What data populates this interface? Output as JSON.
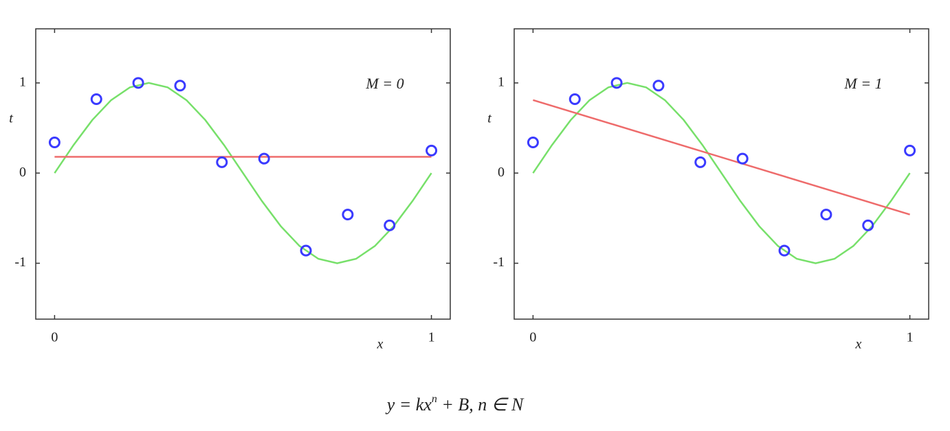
{
  "chart_data": [
    {
      "type": "line",
      "xlabel": "x",
      "ylabel": "t",
      "annotation": "M = 0",
      "xlim": [
        -0.05,
        1.05
      ],
      "ylim": [
        -1.62,
        1.6
      ],
      "xticks": [
        0,
        1
      ],
      "yticks": [
        -1,
        0,
        1
      ],
      "series": [
        {
          "style": "line",
          "color": "#77e06a",
          "x": [
            0,
            0.05,
            0.1,
            0.15,
            0.2,
            0.25,
            0.3,
            0.35,
            0.4,
            0.45,
            0.5,
            0.55,
            0.6,
            0.65,
            0.7,
            0.75,
            0.8,
            0.85,
            0.9,
            0.95,
            1
          ],
          "values": [
            0,
            0.309,
            0.588,
            0.809,
            0.951,
            1,
            0.951,
            0.809,
            0.588,
            0.309,
            0,
            -0.309,
            -0.588,
            -0.809,
            -0.951,
            -1,
            -0.951,
            -0.809,
            -0.588,
            -0.309,
            0
          ]
        },
        {
          "style": "line",
          "color": "#ee6b6b",
          "x": [
            0,
            1
          ],
          "values": [
            0.18,
            0.18
          ]
        },
        {
          "style": "markers",
          "color": "#3a3aff",
          "x": [
            0,
            0.111,
            0.222,
            0.333,
            0.444,
            0.556,
            0.667,
            0.778,
            0.889,
            1
          ],
          "values": [
            0.34,
            0.82,
            1.0,
            0.97,
            0.12,
            0.16,
            -0.86,
            -0.46,
            -0.58,
            0.25
          ]
        }
      ]
    },
    {
      "type": "line",
      "xlabel": "x",
      "ylabel": "t",
      "annotation": "M = 1",
      "xlim": [
        -0.05,
        1.05
      ],
      "ylim": [
        -1.62,
        1.6
      ],
      "xticks": [
        0,
        1
      ],
      "yticks": [
        -1,
        0,
        1
      ],
      "series": [
        {
          "style": "line",
          "color": "#77e06a",
          "x": [
            0,
            0.05,
            0.1,
            0.15,
            0.2,
            0.25,
            0.3,
            0.35,
            0.4,
            0.45,
            0.5,
            0.55,
            0.6,
            0.65,
            0.7,
            0.75,
            0.8,
            0.85,
            0.9,
            0.95,
            1
          ],
          "values": [
            0,
            0.309,
            0.588,
            0.809,
            0.951,
            1,
            0.951,
            0.809,
            0.588,
            0.309,
            0,
            -0.309,
            -0.588,
            -0.809,
            -0.951,
            -1,
            -0.951,
            -0.809,
            -0.588,
            -0.309,
            0
          ]
        },
        {
          "style": "line",
          "color": "#ee6b6b",
          "x": [
            0,
            1
          ],
          "values": [
            0.81,
            -0.46
          ]
        },
        {
          "style": "markers",
          "color": "#3a3aff",
          "x": [
            0,
            0.111,
            0.222,
            0.333,
            0.444,
            0.556,
            0.667,
            0.778,
            0.889,
            1
          ],
          "values": [
            0.34,
            0.82,
            1.0,
            0.97,
            0.12,
            0.16,
            -0.86,
            -0.46,
            -0.58,
            0.25
          ]
        }
      ]
    }
  ],
  "caption": {
    "base": "y = kx",
    "superscript": "n",
    "rest": " + B, n ∈ N"
  }
}
